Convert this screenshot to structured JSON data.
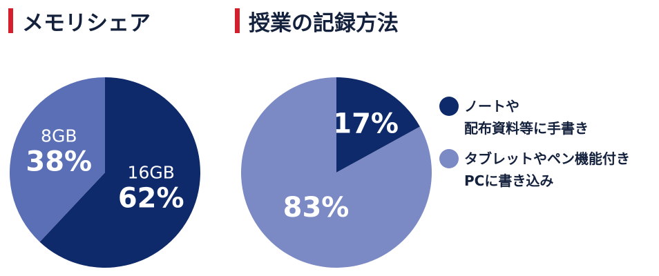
{
  "chart_data": [
    {
      "type": "pie",
      "title": "メモリシェア",
      "categories": [
        "16GB",
        "8GB"
      ],
      "values": [
        62,
        38
      ],
      "value_labels": [
        "62%",
        "38%"
      ],
      "colors": [
        "#0f2a6b",
        "#5b6fb6"
      ],
      "legend": false
    },
    {
      "type": "pie",
      "title": "授業の記録方法",
      "categories": [
        "ノートや\n配布資料等に手書き",
        "タブレットやペン機能付き\nPCに書き込み"
      ],
      "values": [
        17,
        83
      ],
      "value_labels": [
        "17%",
        "83%"
      ],
      "colors": [
        "#0f2a6b",
        "#7b8ac4"
      ],
      "legend": "right"
    }
  ]
}
